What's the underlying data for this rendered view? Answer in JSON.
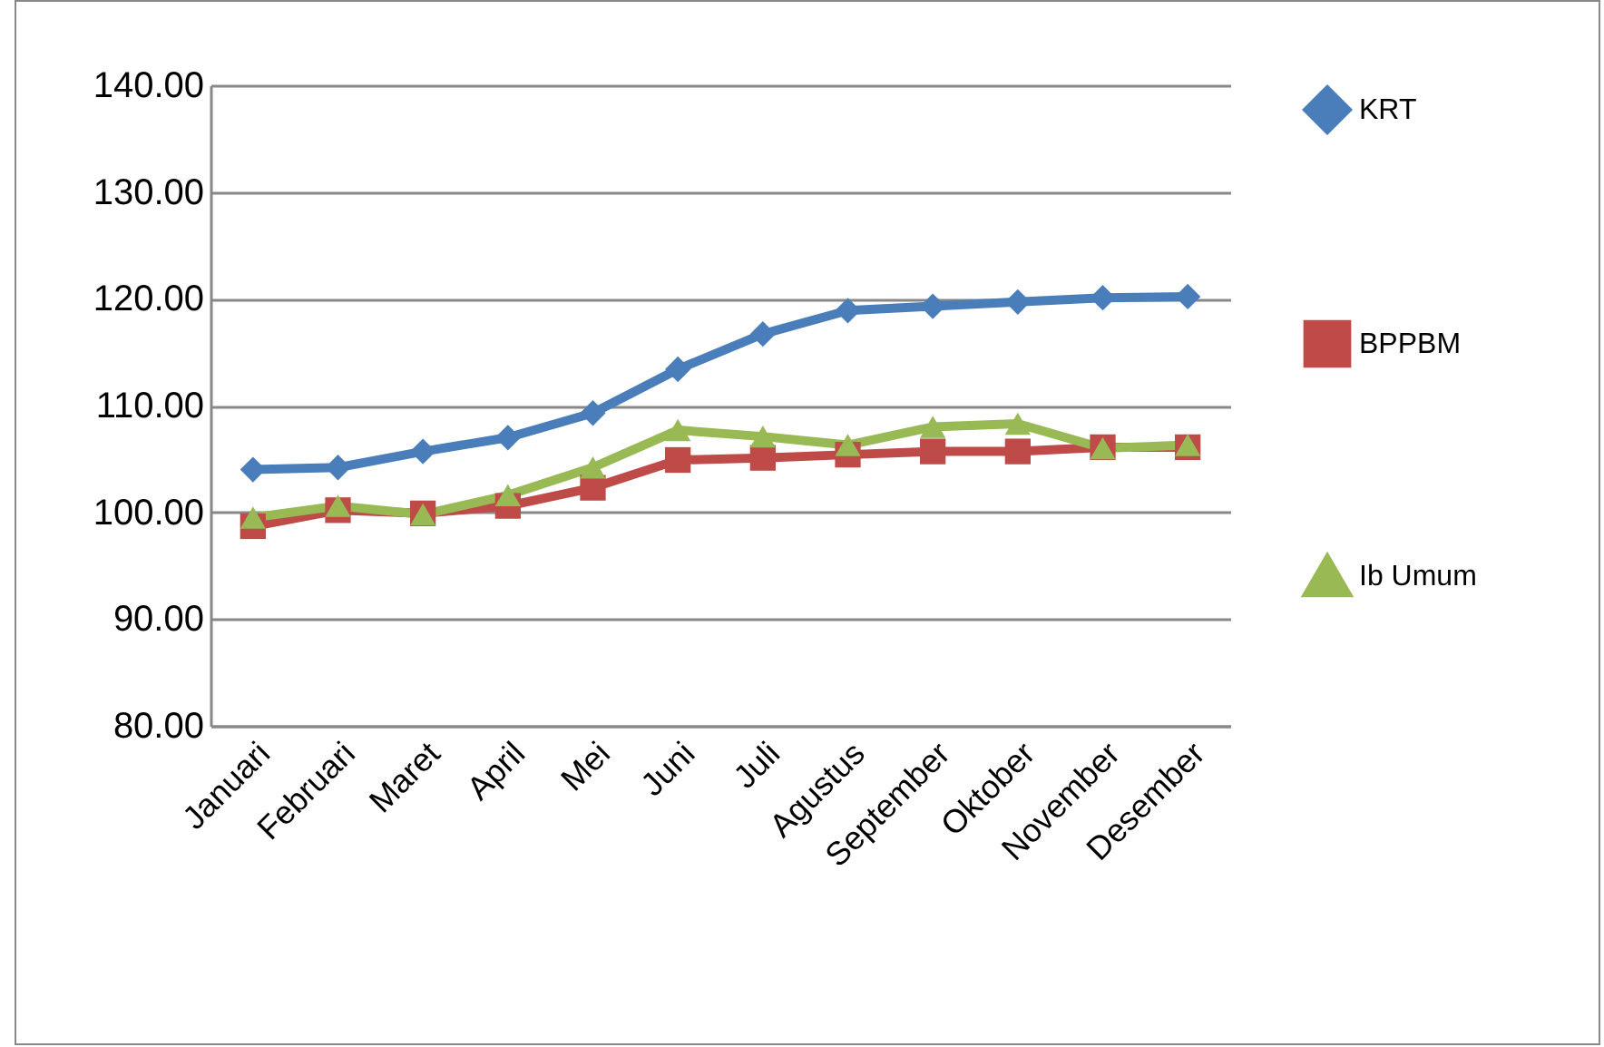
{
  "chart_data": {
    "type": "line",
    "categories": [
      "Januari",
      "Februari",
      "Maret",
      "April",
      "Mei",
      "Juni",
      "Juli",
      "Agustus",
      "September",
      "Oktober",
      "November",
      "Desember"
    ],
    "series": [
      {
        "name": "KRT",
        "color": "#4a7ebb",
        "marker": "diamond",
        "values": [
          104.0,
          104.2,
          105.7,
          107.0,
          109.3,
          113.4,
          116.7,
          118.9,
          119.3,
          119.7,
          120.1,
          120.2
        ]
      },
      {
        "name": "BPPBM",
        "color": "#be4b48",
        "marker": "square",
        "values": [
          98.7,
          100.2,
          99.9,
          100.6,
          102.3,
          104.9,
          105.1,
          105.4,
          105.7,
          105.7,
          106.1,
          106.1
        ]
      },
      {
        "name": "Ib Umum",
        "color": "#98b954",
        "marker": "triangle",
        "values": [
          99.5,
          100.6,
          99.8,
          101.6,
          104.2,
          107.7,
          107.1,
          106.3,
          108.0,
          108.3,
          106.0,
          106.3
        ]
      }
    ],
    "ylim": [
      80,
      140
    ],
    "yticks": [
      {
        "value": 80,
        "label": "80.00"
      },
      {
        "value": 90,
        "label": "90.00"
      },
      {
        "value": 100,
        "label": "100.00"
      },
      {
        "value": 110,
        "label": "110.00"
      },
      {
        "value": 120,
        "label": "120.00"
      },
      {
        "value": 130,
        "label": "130.00"
      },
      {
        "value": 140,
        "label": "140.00"
      }
    ],
    "grid": "y",
    "legend": "right",
    "line_style": "solid"
  }
}
